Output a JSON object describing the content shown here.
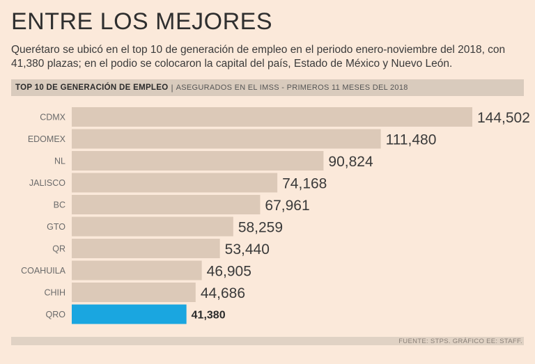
{
  "title": "ENTRE LOS MEJORES",
  "subtitle": "Querétaro se ubicó en el top 10 de generación de empleo en el periodo enero-noviembre del 2018, con 41,380 plazas; en el podio se colocaron la capital del país, Estado de México y Nuevo León.",
  "header": {
    "main": "TOP 10 DE GENERACIÓN DE EMPLEO",
    "separator": "|",
    "sub": "ASEGURADOS EN EL IMSS - PRIMEROS 11 MESES DEL 2018"
  },
  "footer": "FUENTE: STPS. GRÁFICO EE: STAFF.",
  "colors": {
    "bar": "#dcc9b8",
    "highlight": "#1aa6e0",
    "background": "#fbe9da"
  },
  "chart_data": {
    "type": "bar",
    "orientation": "horizontal",
    "categories": [
      "CDMX",
      "EDOMEX",
      "NL",
      "JALISCO",
      "BC",
      "GTO",
      "QR",
      "COAHUILA",
      "CHIH",
      "QRO"
    ],
    "values": [
      144502,
      111480,
      90824,
      74168,
      67961,
      58259,
      53440,
      46905,
      44686,
      41380
    ],
    "value_labels": [
      "144,502",
      "111,480",
      "90,824",
      "74,168",
      "67,961",
      "58,259",
      "53,440",
      "46,905",
      "44,686",
      "41,380"
    ],
    "highlight_category": "QRO",
    "title": "TOP 10 DE GENERACIÓN DE EMPLEO",
    "xlabel": "",
    "ylabel": "",
    "grid": false,
    "legend": "none"
  }
}
